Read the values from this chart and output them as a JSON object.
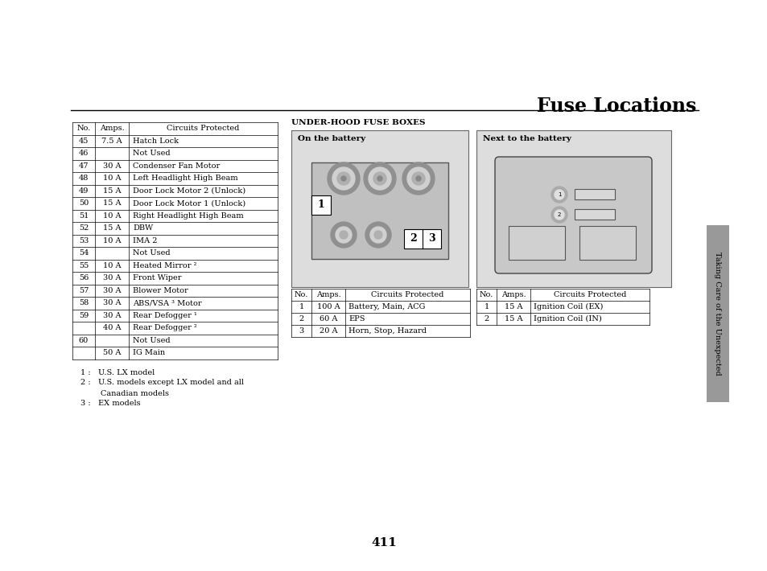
{
  "title": "Fuse Locations",
  "page_number": "411",
  "sidebar_text": "Taking Care of the Unexpected",
  "main_table_headers": [
    "No.",
    "Amps.",
    "Circuits Protected"
  ],
  "main_table_rows": [
    [
      "45",
      "7.5 A",
      "Hatch Lock"
    ],
    [
      "46",
      "",
      "Not Used"
    ],
    [
      "47",
      "30 A",
      "Condenser Fan Motor"
    ],
    [
      "48",
      "10 A",
      "Left Headlight High Beam"
    ],
    [
      "49",
      "15 A",
      "Door Lock Motor 2 (Unlock)"
    ],
    [
      "50",
      "15 A",
      "Door Lock Motor 1 (Unlock)"
    ],
    [
      "51",
      "10 A",
      "Right Headlight High Beam"
    ],
    [
      "52",
      "15 A",
      "DBW"
    ],
    [
      "53",
      "10 A",
      "IMA 2"
    ],
    [
      "54",
      "",
      "Not Used"
    ],
    [
      "55",
      "10 A",
      "Heated Mirror ²"
    ],
    [
      "56",
      "30 A",
      "Front Wiper"
    ],
    [
      "57",
      "30 A",
      "Blower Motor"
    ],
    [
      "58",
      "30 A",
      "ABS/VSA ³ Motor"
    ],
    [
      "59",
      "30 A",
      "Rear Defogger ¹"
    ],
    [
      "",
      "40 A",
      "Rear Defogger ²"
    ],
    [
      "60",
      "",
      "Not Used"
    ],
    [
      "",
      "50 A",
      "IG Main"
    ]
  ],
  "underhood_title": "UNDER-HOOD FUSE BOXES",
  "battery_label": "On the battery",
  "next_battery_label": "Next to the battery",
  "battery_table_headers": [
    "No.",
    "Amps.",
    "Circuits Protected"
  ],
  "battery_table_rows": [
    [
      "1",
      "100 A",
      "Battery, Main, ACG"
    ],
    [
      "2",
      "60 A",
      "EPS"
    ],
    [
      "3",
      "20 A",
      "Horn, Stop, Hazard"
    ]
  ],
  "next_battery_table_headers": [
    "No.",
    "Amps.",
    "Circuits Protected"
  ],
  "next_battery_table_rows": [
    [
      "1",
      "15 A",
      "Ignition Coil (EX)"
    ],
    [
      "2",
      "15 A",
      "Ignition Coil (IN)"
    ]
  ],
  "footnotes": [
    "1 :   U.S. LX model",
    "2 :   U.S. models except LX model and all",
    "        Canadian models",
    "3 :   EX models"
  ],
  "bg_color": "#ffffff",
  "box_bg": "#dddddd",
  "sidebar_color": "#999999"
}
